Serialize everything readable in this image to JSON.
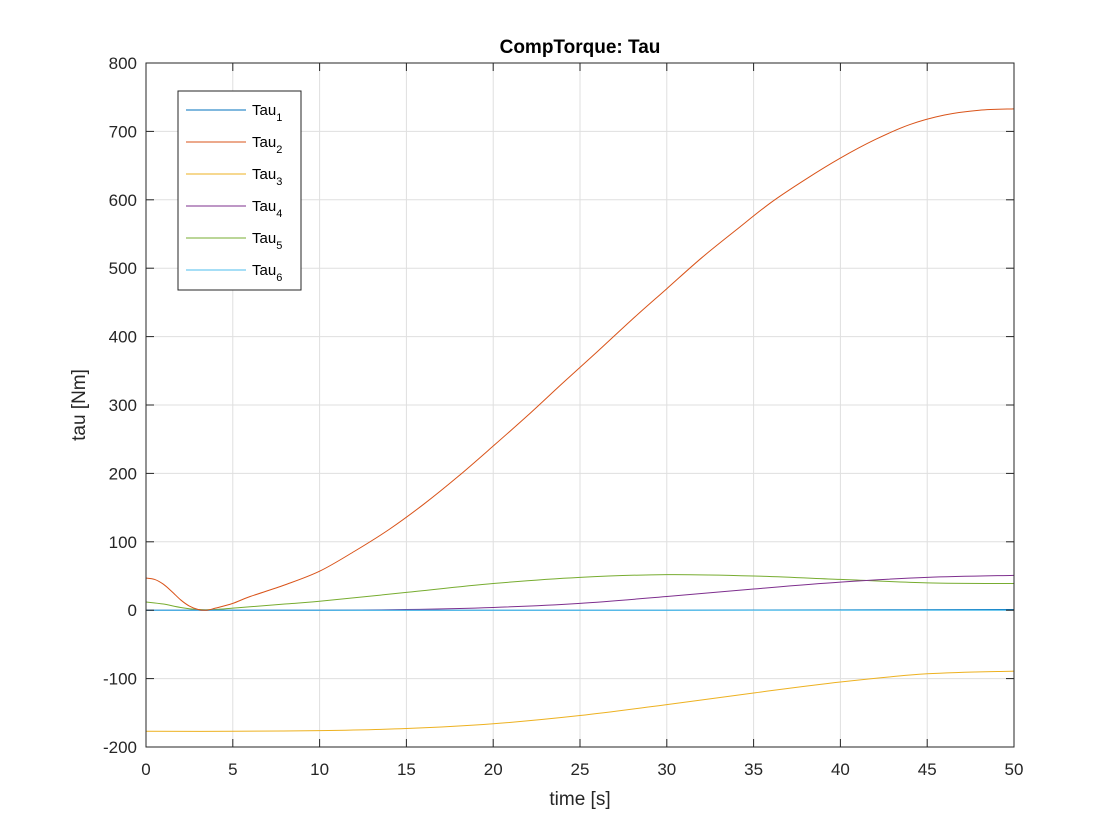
{
  "chart_data": {
    "type": "line",
    "title": "CompTorque: Tau",
    "xlabel": "time [s]",
    "ylabel": "tau [Nm]",
    "xlim": [
      0,
      50
    ],
    "ylim": [
      -200,
      800
    ],
    "xticks": [
      0,
      5,
      10,
      15,
      20,
      25,
      30,
      35,
      40,
      45,
      50
    ],
    "yticks": [
      -200,
      -100,
      0,
      100,
      200,
      300,
      400,
      500,
      600,
      700,
      800
    ],
    "xtick_labels": [
      "0",
      "5",
      "10",
      "15",
      "20",
      "25",
      "30",
      "35",
      "40",
      "45",
      "50"
    ],
    "ytick_labels": [
      "-200",
      "-100",
      "0",
      "100",
      "200",
      "300",
      "400",
      "500",
      "600",
      "700",
      "800"
    ],
    "grid": true,
    "legend_position": "top-left",
    "series": [
      {
        "name": "Tau",
        "subscript": "1",
        "color": "#0072BD",
        "x": [
          0,
          10,
          20,
          30,
          40,
          50
        ],
        "y": [
          0,
          0,
          0,
          0,
          0.5,
          1
        ]
      },
      {
        "name": "Tau",
        "subscript": "2",
        "color": "#D95319",
        "x": [
          0,
          0.5,
          1,
          1.5,
          2,
          2.5,
          3,
          3.5,
          4,
          5,
          6,
          8,
          10,
          12,
          14,
          16,
          18,
          20,
          22,
          24,
          26,
          28,
          30,
          32,
          34,
          36,
          38,
          40,
          42,
          44,
          46,
          48,
          50
        ],
        "y": [
          47,
          45,
          38,
          27,
          15,
          6,
          1,
          0,
          3,
          10,
          20,
          37,
          57,
          86,
          118,
          155,
          196,
          240,
          285,
          332,
          378,
          425,
          470,
          515,
          556,
          596,
          630,
          661,
          688,
          710,
          724,
          731,
          733
        ]
      },
      {
        "name": "Tau",
        "subscript": "3",
        "color": "#EDB120",
        "x": [
          0,
          5,
          10,
          15,
          20,
          25,
          30,
          35,
          40,
          45,
          50
        ],
        "y": [
          -177,
          -177,
          -176,
          -173,
          -166,
          -154,
          -138,
          -121,
          -105,
          -93,
          -89
        ]
      },
      {
        "name": "Tau",
        "subscript": "4",
        "color": "#7E2F8E",
        "x": [
          0,
          10,
          15,
          20,
          25,
          30,
          35,
          40,
          45,
          50
        ],
        "y": [
          0,
          0,
          1,
          4,
          10,
          20,
          31,
          41,
          48,
          51
        ]
      },
      {
        "name": "Tau",
        "subscript": "5",
        "color": "#77AC30",
        "x": [
          0,
          1,
          2,
          3,
          4,
          5,
          6,
          8,
          10,
          15,
          20,
          25,
          30,
          35,
          40,
          45,
          50
        ],
        "y": [
          12,
          9,
          4,
          1,
          1,
          3,
          5,
          9,
          13,
          26,
          39,
          48,
          52,
          50,
          45,
          40,
          39
        ]
      },
      {
        "name": "Tau",
        "subscript": "6",
        "color": "#4DBEEE",
        "x": [
          0,
          10,
          20,
          30,
          40,
          50
        ],
        "y": [
          0,
          0,
          0,
          0,
          0,
          0
        ]
      }
    ]
  }
}
